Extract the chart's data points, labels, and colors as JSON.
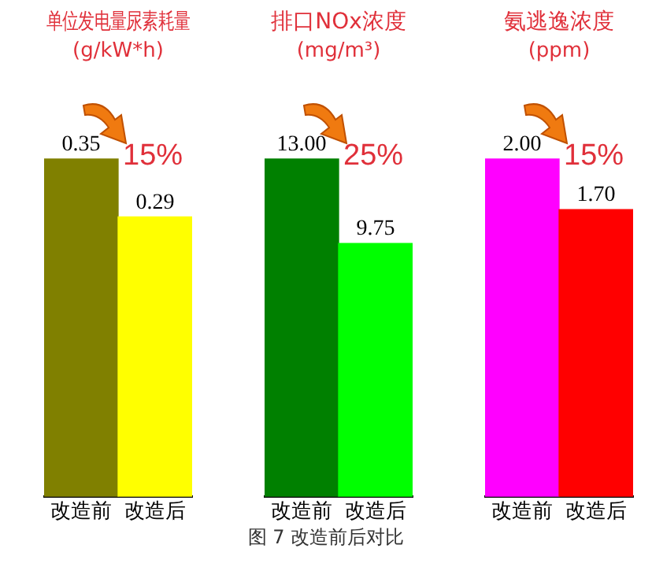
{
  "chart_data": [
    {
      "type": "bar",
      "title": "单位发电量尿素耗量",
      "subtitle": "(g/kW*h)",
      "categories": [
        "改造前",
        "改造后"
      ],
      "values": [
        0.35,
        0.29
      ],
      "colors": [
        "#808000",
        "#ffff00"
      ],
      "value_labels": [
        "0.35",
        "0.29"
      ],
      "annotations": [
        "15%"
      ],
      "tick_labels": "x"
    },
    {
      "type": "bar",
      "title": "排口NOx浓度",
      "subtitle": "(mg/m³)",
      "categories": [
        "改造前",
        "改造后"
      ],
      "values": [
        13.0,
        9.75
      ],
      "colors": [
        "#008000",
        "#00ff00"
      ],
      "value_labels": [
        "13.00",
        "9.75"
      ],
      "annotations": [
        "25%"
      ],
      "tick_labels": "x"
    },
    {
      "type": "bar",
      "title": "氨逃逸浓度",
      "subtitle": "(ppm)",
      "categories": [
        "改造前",
        "改造后"
      ],
      "values": [
        2.0,
        1.7
      ],
      "colors": [
        "#ff00ff",
        "#ff0000"
      ],
      "value_labels": [
        "2.00",
        "1.70"
      ],
      "annotations": [
        "15%"
      ],
      "tick_labels": "x"
    },
    {
      "type": "other",
      "annotations": [
        "图 7 改造前后对比"
      ]
    }
  ]
}
